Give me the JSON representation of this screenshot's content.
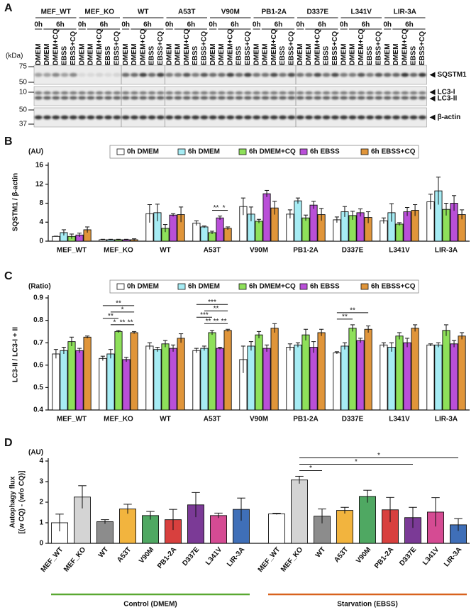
{
  "blot": {
    "panel": "A",
    "kda_label": "(kDa)",
    "groups": [
      "MEF_WT",
      "MEF_KO",
      "WT",
      "A53T",
      "V90M",
      "PB1-2A",
      "D337E",
      "L341V",
      "LIR-3A"
    ],
    "times": [
      "0h",
      "6h"
    ],
    "lanes": [
      "DMEM",
      "DMEM",
      "DMEM+CQ",
      "EBSS",
      "EBSS+CQ"
    ],
    "lane_colors": [
      "#111111",
      "#3a9bf0",
      "#2fa52f",
      "#cc2f9a",
      "#e0731e"
    ],
    "blots": [
      {
        "protein": [
          "SQSTM1"
        ],
        "markers": [
          75,
          50
        ]
      },
      {
        "protein": [
          "LC3-I",
          "LC3-II"
        ],
        "markers": [
          10
        ]
      },
      {
        "protein": [
          "β-actin"
        ],
        "markers": [
          50,
          37
        ]
      }
    ]
  },
  "chart_data": [
    {
      "type": "bar",
      "panel": "B",
      "unit": "(AU)",
      "ylabel": "SQSTM1 / β-actin",
      "categories": [
        "MEF_WT",
        "MEF_KO",
        "WT",
        "A53T",
        "V90M",
        "PB1-2A",
        "D337E",
        "L341V",
        "LIR-3A"
      ],
      "ylim": [
        0,
        16
      ],
      "yticks": [
        0,
        4,
        8,
        12,
        16
      ],
      "legend": "top",
      "series": [
        {
          "name": "0h DMEM",
          "color": "#ffffff",
          "values": [
            1.0,
            0.3,
            5.8,
            3.8,
            7.3,
            5.7,
            4.5,
            4.3,
            8.3
          ],
          "errors": [
            0.05,
            0.1,
            1.9,
            0.5,
            1.8,
            0.9,
            0.6,
            0.6,
            1.6
          ]
        },
        {
          "name": "6h DMEM",
          "color": "#a6ecf4",
          "values": [
            1.8,
            0.3,
            6.0,
            3.0,
            5.7,
            8.5,
            6.2,
            6.0,
            10.6
          ],
          "errors": [
            0.6,
            0.1,
            1.8,
            0.2,
            1.5,
            0.6,
            1.1,
            1.9,
            2.9
          ]
        },
        {
          "name": "6h DMEM+CQ",
          "color": "#8ee05a",
          "values": [
            1.0,
            0.3,
            2.7,
            1.8,
            4.2,
            4.9,
            5.4,
            3.6,
            6.7
          ],
          "errors": [
            0.5,
            0.1,
            0.8,
            0.3,
            0.4,
            0.6,
            0.9,
            0.3,
            1.3
          ]
        },
        {
          "name": "6h EBSS",
          "color": "#b94fd8",
          "values": [
            1.3,
            0.3,
            5.5,
            4.9,
            10.0,
            7.6,
            6.0,
            6.2,
            8.0
          ],
          "errors": [
            0.4,
            0.1,
            0.3,
            0.4,
            0.7,
            0.8,
            0.8,
            0.9,
            1.6
          ]
        },
        {
          "name": "6h EBSS+CQ",
          "color": "#e0953a",
          "values": [
            2.4,
            0.3,
            5.6,
            2.7,
            7.0,
            5.6,
            5.0,
            6.5,
            5.6
          ],
          "errors": [
            0.6,
            0.2,
            1.6,
            0.3,
            1.4,
            1.3,
            1.2,
            1.2,
            1.0
          ]
        }
      ],
      "annotations": [
        {
          "label": "**",
          "category": "A53T",
          "from": "6h DMEM+CQ",
          "to": "6h EBSS"
        },
        {
          "label": "*",
          "category": "A53T",
          "from": "6h EBSS",
          "to": "6h EBSS+CQ"
        }
      ]
    },
    {
      "type": "bar",
      "panel": "C",
      "unit": "(Ratio)",
      "ylabel": "LC3-II / LC3-I + II",
      "categories": [
        "MEF_WT",
        "MEF_KO",
        "WT",
        "A53T",
        "V90M",
        "PB1-2A",
        "D337E",
        "L341V",
        "LIR-3A"
      ],
      "ylim": [
        0.4,
        0.9
      ],
      "yticks": [
        0.4,
        0.5,
        0.6,
        0.7,
        0.8,
        0.9
      ],
      "legend": "top",
      "series": [
        {
          "name": "0h DMEM",
          "color": "#ffffff",
          "values": [
            0.65,
            0.63,
            0.685,
            0.665,
            0.625,
            0.68,
            0.655,
            0.69,
            0.69
          ],
          "errors": [
            0.02,
            0.01,
            0.015,
            0.01,
            0.06,
            0.015,
            0.005,
            0.01,
            0.005
          ]
        },
        {
          "name": "6h DMEM",
          "color": "#a6ecf4",
          "values": [
            0.665,
            0.65,
            0.67,
            0.675,
            0.685,
            0.69,
            0.685,
            0.68,
            0.69
          ],
          "errors": [
            0.015,
            0.02,
            0.01,
            0.01,
            0.02,
            0.01,
            0.015,
            0.02,
            0.01
          ]
        },
        {
          "name": "6h DMEM+CQ",
          "color": "#8ee05a",
          "values": [
            0.705,
            0.75,
            0.695,
            0.745,
            0.735,
            0.735,
            0.765,
            0.73,
            0.755
          ],
          "errors": [
            0.02,
            0.005,
            0.015,
            0.01,
            0.015,
            0.025,
            0.015,
            0.015,
            0.025
          ]
        },
        {
          "name": "6h EBSS",
          "color": "#b94fd8",
          "values": [
            0.665,
            0.625,
            0.675,
            0.675,
            0.675,
            0.68,
            0.71,
            0.7,
            0.695
          ],
          "errors": [
            0.01,
            0.01,
            0.015,
            0.005,
            0.015,
            0.025,
            0.01,
            0.02,
            0.015
          ]
        },
        {
          "name": "6h EBSS+CQ",
          "color": "#e0953a",
          "values": [
            0.725,
            0.745,
            0.72,
            0.755,
            0.765,
            0.745,
            0.76,
            0.765,
            0.73
          ],
          "errors": [
            0.005,
            0.005,
            0.02,
            0.005,
            0.02,
            0.015,
            0.015,
            0.015,
            0.015
          ]
        }
      ],
      "annotations": [
        {
          "label": "**",
          "category": "MEF_KO",
          "from": "0h DMEM",
          "to": "6h EBSS+CQ"
        },
        {
          "label": "**",
          "category": "MEF_KO",
          "from": "0h DMEM",
          "to": "6h DMEM+CQ"
        },
        {
          "label": "*",
          "category": "MEF_KO",
          "from": "6h DMEM",
          "to": "6h EBSS+CQ"
        },
        {
          "label": "*",
          "category": "MEF_KO",
          "from": "6h DMEM",
          "to": "6h DMEM+CQ"
        },
        {
          "label": "**",
          "category": "MEF_KO",
          "from": "6h DMEM+CQ",
          "to": "6h EBSS"
        },
        {
          "label": "**",
          "category": "MEF_KO",
          "from": "6h EBSS",
          "to": "6h EBSS+CQ"
        },
        {
          "label": "***",
          "category": "A53T",
          "from": "0h DMEM",
          "to": "6h EBSS+CQ"
        },
        {
          "label": "***",
          "category": "A53T",
          "from": "0h DMEM",
          "to": "6h DMEM+CQ"
        },
        {
          "label": "**",
          "category": "A53T",
          "from": "6h DMEM",
          "to": "6h EBSS+CQ"
        },
        {
          "label": "**",
          "category": "A53T",
          "from": "6h DMEM",
          "to": "6h DMEM+CQ"
        },
        {
          "label": "**",
          "category": "A53T",
          "from": "6h DMEM+CQ",
          "to": "6h EBSS"
        },
        {
          "label": "**",
          "category": "A53T",
          "from": "6h EBSS",
          "to": "6h EBSS+CQ"
        },
        {
          "label": "**",
          "category": "D337E",
          "from": "0h DMEM",
          "to": "6h EBSS+CQ"
        },
        {
          "label": "**",
          "category": "D337E",
          "from": "0h DMEM",
          "to": "6h DMEM+CQ"
        }
      ]
    },
    {
      "type": "bar",
      "panel": "D",
      "unit": "(AU)",
      "ylabel": [
        "Autophagy flux",
        "[(w CQ) - (w/o CQ)]"
      ],
      "ylim": [
        0,
        4
      ],
      "yticks": [
        0,
        1,
        2,
        3,
        4
      ],
      "colors": [
        "#ffffff",
        "#d4d4d4",
        "#8c8c8c",
        "#f2b43e",
        "#4fa862",
        "#d8403e",
        "#7b3a96",
        "#d54b93",
        "#3f6fb8"
      ],
      "groups": [
        {
          "name": "Control (DMEM)",
          "color": "#5aa832",
          "categories": [
            "MEF_WT",
            "MEF_KO",
            "WT",
            "A53T",
            "V90M",
            "PB1-2A",
            "D337E",
            "L341V",
            "LIR-3A"
          ],
          "values": [
            1.0,
            2.25,
            1.05,
            1.67,
            1.35,
            1.15,
            1.87,
            1.35,
            1.65
          ],
          "errors": [
            0.42,
            0.55,
            0.1,
            0.23,
            0.2,
            0.5,
            0.6,
            0.12,
            0.55
          ],
          "annotations": []
        },
        {
          "name": "Starvation (EBSS)",
          "color": "#d8621e",
          "categories": [
            "MEF_WT",
            "MEF_KO",
            "WT",
            "A53T",
            "V90M",
            "PB1-2A",
            "D337E",
            "L341V",
            "LIR-3A"
          ],
          "values": [
            1.43,
            3.08,
            1.32,
            1.6,
            2.28,
            1.63,
            1.25,
            1.52,
            0.9
          ],
          "errors": [
            0.03,
            0.18,
            0.35,
            0.15,
            0.3,
            0.6,
            0.5,
            0.7,
            0.3
          ],
          "annotations": [
            {
              "label": "*",
              "from": "MEF_KO",
              "to": "WT"
            },
            {
              "label": "*",
              "from": "MEF_KO",
              "to": "D337E"
            },
            {
              "label": "*",
              "from": "MEF_KO",
              "to": "LIR-3A"
            }
          ]
        }
      ]
    }
  ]
}
